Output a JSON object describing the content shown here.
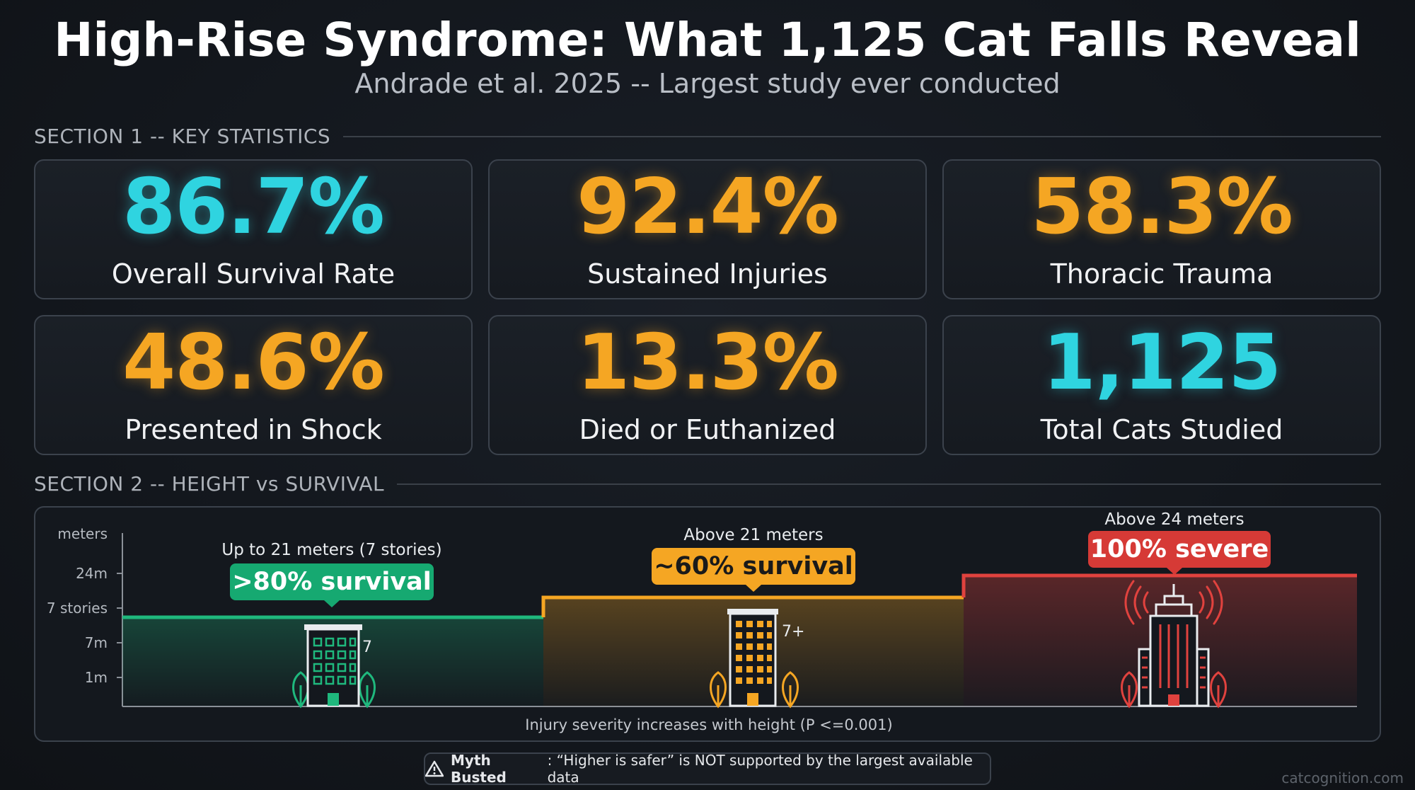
{
  "header": {
    "title": "High-Rise Syndrome: What 1,125 Cat Falls Reveal",
    "subtitle": "Andrade et al. 2025 -- Largest study ever conducted"
  },
  "section1": {
    "heading": "SECTION 1 -- KEY STATISTICS",
    "stats": [
      {
        "value": "86.7%",
        "label": "Overall Survival Rate",
        "color": "#2fd4e0"
      },
      {
        "value": "92.4%",
        "label": "Sustained Injuries",
        "color": "#f5a623"
      },
      {
        "value": "58.3%",
        "label": "Thoracic Trauma",
        "color": "#f5a623"
      },
      {
        "value": "48.6%",
        "label": "Presented in Shock",
        "color": "#f5a623"
      },
      {
        "value": "13.3%",
        "label": "Died or Euthanized",
        "color": "#f5a623"
      },
      {
        "value": "1,125",
        "label": "Total Cats Studied",
        "color": "#2fd4e0"
      }
    ]
  },
  "section2": {
    "heading": "SECTION 2 -- HEIGHT vs SURVIVAL",
    "footnote": "Injury severity increases with height (P <=0.001)"
  },
  "chart_data": {
    "type": "area",
    "ylabel": "meters",
    "y_ticks": [
      "24m",
      "7 stories",
      "7m",
      "1m"
    ],
    "segments": [
      {
        "range_label": "Up to 21 meters (7 stories)",
        "badge": ">80% survival",
        "building_label": "7",
        "color": "#1fb87d",
        "level": 3
      },
      {
        "range_label": "Above 21 meters",
        "badge": "~60% survival",
        "building_label": "7+",
        "color": "#f5a623",
        "level": 4
      },
      {
        "range_label": "Above 24 meters",
        "badge": "100% severe",
        "building_label": "",
        "color": "#e0423e",
        "level": 5
      }
    ]
  },
  "myth": {
    "label": "Myth Busted",
    "text": ": “Higher is safer” is NOT supported by the largest available data"
  },
  "watermark": "catcognition.com"
}
